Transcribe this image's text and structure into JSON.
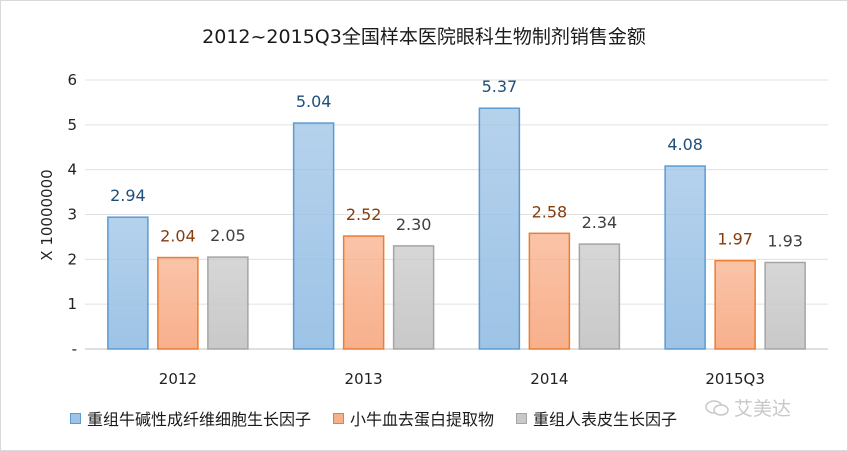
{
  "chart_data": {
    "type": "bar",
    "title": "2012~2015Q3全国样本医院眼科生物制剂销售金额",
    "ylabel": "X 10000000",
    "xlabel": "",
    "categories": [
      "2012",
      "2013",
      "2014",
      "2015Q3"
    ],
    "ylim": [
      0,
      6
    ],
    "yticks": [
      "-",
      "1",
      "2",
      "3",
      "4",
      "5",
      "6"
    ],
    "grid": true,
    "legend_position": "bottom-left",
    "series": [
      {
        "name": "重组牛碱性成纤维细胞生长因子",
        "values": [
          2.94,
          5.04,
          5.37,
          4.08
        ],
        "labels": [
          "2.94",
          "5.04",
          "5.37",
          "4.08"
        ],
        "color": "#9dc3e6",
        "stroke": "#5b9bd5",
        "label_color": "#1f4e79"
      },
      {
        "name": "小牛血去蛋白提取物",
        "values": [
          2.04,
          2.52,
          2.58,
          1.97
        ],
        "labels": [
          "2.04",
          "2.52",
          "2.58",
          "1.97"
        ],
        "color": "#f8b08c",
        "stroke": "#ed7d31",
        "label_color": "#843c0c"
      },
      {
        "name": "重组人表皮生长因子",
        "values": [
          2.05,
          2.3,
          2.34,
          1.93
        ],
        "labels": [
          "2.05",
          "2.30",
          "2.34",
          "1.93"
        ],
        "color": "#c9c9c9",
        "stroke": "#a5a5a5",
        "label_color": "#404040"
      }
    ]
  },
  "watermark": {
    "text": "艾美达",
    "icon": "wechat-icon"
  }
}
